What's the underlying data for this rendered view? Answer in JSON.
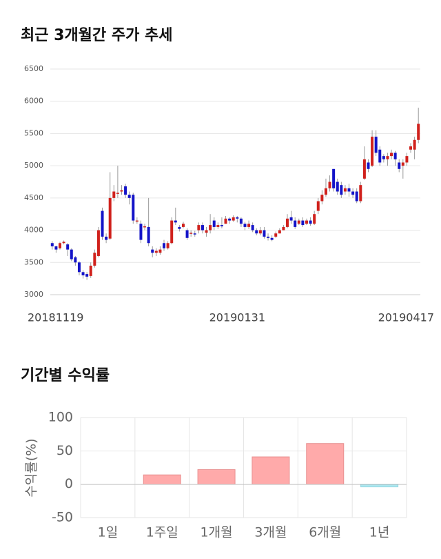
{
  "chart_data": [
    {
      "type": "candlestick",
      "title": "최근 3개월간 주가 추세",
      "categories": [
        "20181119",
        null,
        null,
        null,
        null,
        null,
        null,
        null,
        null,
        null,
        null,
        null,
        null,
        null,
        null,
        null,
        null,
        null,
        null,
        null,
        null,
        null,
        null,
        null,
        null,
        null,
        null,
        null,
        null,
        null,
        null,
        null,
        null,
        null,
        null,
        null,
        null,
        null,
        null,
        null,
        null,
        null,
        null,
        null,
        null,
        null,
        null,
        null,
        "20190131",
        null,
        null,
        null,
        null,
        null,
        null,
        null,
        null,
        null,
        null,
        null,
        null,
        null,
        null,
        null,
        null,
        null,
        null,
        null,
        null,
        null,
        null,
        null,
        null,
        null,
        null,
        null,
        null,
        null,
        null,
        null,
        null,
        null,
        null,
        null,
        null,
        null,
        null,
        null,
        null,
        null,
        null,
        null,
        null,
        null,
        null,
        "20190417"
      ],
      "open": [
        3800,
        3750,
        3720,
        3800,
        3780,
        3700,
        3580,
        3500,
        3350,
        3320,
        3290,
        3450,
        3600,
        4300,
        3900,
        3870,
        4500,
        4580,
        4600,
        4680,
        4550,
        4550,
        4150,
        4100,
        4050,
        4050,
        3700,
        3650,
        3650,
        3800,
        3720,
        3800,
        4150,
        4050,
        4050,
        4000,
        3950,
        3950,
        4000,
        4080,
        3960,
        4000,
        4150,
        4050,
        4080,
        4100,
        4180,
        4150,
        4200,
        4180,
        4100,
        4050,
        4080,
        4000,
        3950,
        4000,
        3900,
        3880,
        3900,
        3950,
        4000,
        4050,
        4200,
        4150,
        4100,
        4150,
        4100,
        4150,
        4100,
        4300,
        4450,
        4550,
        4650,
        4950,
        4750,
        4700,
        4600,
        4650,
        4600,
        4600,
        4450,
        4800,
        5050,
        5000,
        5450,
        5250,
        5150,
        5100,
        5150,
        5200,
        5050,
        5000,
        5050,
        5250,
        5250,
        5400
      ],
      "high": [
        3830,
        3760,
        3820,
        3840,
        3800,
        3720,
        3600,
        3520,
        3380,
        3350,
        3500,
        3700,
        4050,
        4350,
        3950,
        4900,
        4700,
        5000,
        4700,
        4720,
        4600,
        4580,
        4200,
        4150,
        4100,
        4500,
        3750,
        3720,
        3750,
        3850,
        3830,
        4200,
        4350,
        4080,
        4130,
        4030,
        4000,
        3990,
        4120,
        4120,
        4050,
        4250,
        4200,
        4120,
        4200,
        4220,
        4200,
        4230,
        4220,
        4200,
        4130,
        4150,
        4120,
        4030,
        4050,
        4050,
        3950,
        3920,
        3980,
        4030,
        4080,
        4250,
        4300,
        4200,
        4180,
        4200,
        4180,
        4200,
        4300,
        4500,
        4620,
        4800,
        4850,
        4950,
        4800,
        4750,
        4700,
        4720,
        4650,
        4650,
        4750,
        5300,
        5100,
        5550,
        5550,
        5300,
        5180,
        5200,
        5250,
        5230,
        5100,
        5100,
        5200,
        5350,
        5450,
        5900
      ],
      "low": [
        3700,
        3650,
        3700,
        3780,
        3600,
        3520,
        3450,
        3300,
        3250,
        3230,
        3260,
        3420,
        3580,
        3850,
        3800,
        3850,
        4450,
        4500,
        4550,
        4500,
        4400,
        4100,
        4100,
        3800,
        4000,
        3750,
        3580,
        3600,
        3620,
        3680,
        3700,
        3780,
        4080,
        3980,
        4030,
        3850,
        3900,
        3900,
        3950,
        3950,
        3900,
        3950,
        4000,
        4020,
        4030,
        4100,
        4100,
        4130,
        4120,
        4050,
        4000,
        4020,
        3970,
        3920,
        3920,
        3870,
        3840,
        3830,
        3880,
        3950,
        4000,
        4030,
        4100,
        4020,
        4080,
        4050,
        4080,
        4070,
        4080,
        4250,
        4400,
        4520,
        4600,
        4600,
        4550,
        4500,
        4550,
        4520,
        4500,
        4420,
        4420,
        4780,
        4900,
        4980,
        5150,
        5000,
        5050,
        5000,
        5100,
        5000,
        4900,
        4800,
        5000,
        5200,
        5100,
        5350
      ],
      "close": [
        3750,
        3700,
        3800,
        3820,
        3700,
        3550,
        3500,
        3350,
        3300,
        3280,
        3450,
        3650,
        4000,
        3900,
        3850,
        4500,
        4600,
        4580,
        4620,
        4550,
        4500,
        4150,
        4150,
        3850,
        4060,
        3800,
        3650,
        3680,
        3700,
        3720,
        3800,
        4150,
        4120,
        4020,
        4100,
        3880,
        3960,
        3940,
        4080,
        4000,
        4000,
        4080,
        4050,
        4080,
        4060,
        4180,
        4150,
        4200,
        4180,
        4100,
        4050,
        4100,
        4000,
        3950,
        4000,
        3900,
        3880,
        3850,
        3950,
        4000,
        4050,
        4180,
        4150,
        4050,
        4150,
        4080,
        4150,
        4100,
        4250,
        4450,
        4550,
        4650,
        4750,
        4650,
        4600,
        4550,
        4650,
        4600,
        4550,
        4450,
        4700,
        5100,
        4950,
        5450,
        5200,
        5050,
        5100,
        5150,
        5200,
        5100,
        4950,
        5050,
        5150,
        5300,
        5400,
        5650
      ],
      "up_color": "#d0211c",
      "down_color": "#1414c8",
      "ylim": [
        3000,
        6500
      ],
      "yticks": [
        3000,
        3500,
        4000,
        4500,
        5000,
        5500,
        6000,
        6500
      ],
      "grid": true
    },
    {
      "type": "bar",
      "title": "기간별 수익률",
      "ylabel": "수익률(%)",
      "categories": [
        "1일",
        "1주일",
        "1개월",
        "3개월",
        "6개월",
        "1년"
      ],
      "values": [
        0,
        14,
        22,
        41,
        61,
        -4
      ],
      "pos_color": "#ffaaaa",
      "neg_color": "#aee8f0",
      "ylim": [
        -50,
        100
      ],
      "yticks": [
        -50,
        0,
        50,
        100
      ],
      "grid": true
    }
  ]
}
